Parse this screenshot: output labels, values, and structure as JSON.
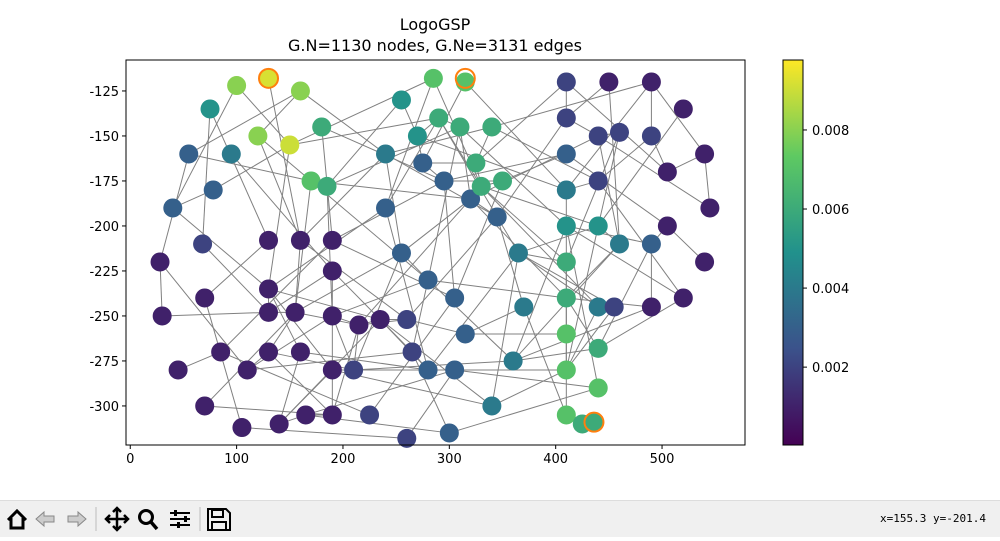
{
  "chart_data": {
    "type": "graph",
    "title": "LogoGSP",
    "subtitle": "G.N=1130 nodes, G.Ne=3131 edges",
    "xlim": [
      -4,
      578
    ],
    "ylim": [
      -321.7,
      -107.8
    ],
    "xticks": [
      0,
      100,
      200,
      300,
      400,
      500
    ],
    "yticks": [
      -125,
      -150,
      -175,
      -200,
      -225,
      -250,
      -275,
      -300
    ],
    "clim": [
      3e-05,
      0.00977
    ],
    "cticks": [
      0.002,
      0.004,
      0.006,
      0.008
    ],
    "colormap": "viridis",
    "edge_color": "#808080",
    "highlight_color": "#ff7f0e",
    "nodes": {
      "x": [
        180,
        160,
        130,
        100,
        75,
        55,
        40,
        28,
        30,
        45,
        70,
        105,
        140,
        165,
        190,
        190,
        190,
        190,
        190,
        160,
        130,
        130,
        130,
        155,
        160,
        130,
        110,
        85,
        70,
        68,
        78,
        95,
        120,
        150,
        170,
        185,
        350,
        340,
        315,
        285,
        255,
        240,
        240,
        255,
        280,
        305,
        315,
        305,
        280,
        265,
        260,
        235,
        215,
        210,
        225,
        260,
        300,
        340,
        360,
        370,
        365,
        345,
        320,
        295,
        275,
        270,
        290,
        310,
        325,
        330,
        410,
        410,
        410,
        410,
        410,
        410,
        410,
        410,
        410,
        410,
        425,
        436,
        440,
        440,
        440,
        450,
        490,
        520,
        540,
        545,
        540,
        520,
        490,
        455,
        440,
        440,
        460,
        490,
        505,
        505,
        490,
        460,
        440
      ],
      "y": [
        -145,
        -125,
        -118,
        -122,
        -135,
        -160,
        -190,
        -220,
        -250,
        -280,
        -300,
        -312,
        -310,
        -305,
        -305,
        -280,
        -250,
        -225,
        -208,
        -208,
        -208,
        -235,
        -248,
        -248,
        -270,
        -270,
        -280,
        -270,
        -240,
        -210,
        -180,
        -160,
        -150,
        -155,
        -175,
        -178,
        -175,
        -145,
        -120,
        -118,
        -130,
        -160,
        -190,
        -215,
        -230,
        -240,
        -260,
        -280,
        -280,
        -270,
        -252,
        -252,
        -255,
        -280,
        -305,
        -318,
        -315,
        -300,
        -275,
        -245,
        -215,
        -195,
        -185,
        -175,
        -165,
        -150,
        -140,
        -145,
        -165,
        -178,
        -120,
        -140,
        -160,
        -180,
        -200,
        -220,
        -240,
        -260,
        -280,
        -305,
        -310,
        -309,
        -290,
        -268,
        -245,
        -120,
        -120,
        -135,
        -160,
        -190,
        -220,
        -240,
        -245,
        -245,
        -150,
        -175,
        -148,
        -150,
        -170,
        -200,
        -210,
        -210,
        -200
      ],
      "value": [
        0.006,
        0.008,
        0.0092,
        0.008,
        0.005,
        0.003,
        0.003,
        0.001,
        0.001,
        0.001,
        0.001,
        0.001,
        0.001,
        0.001,
        0.001,
        0.001,
        0.001,
        0.001,
        0.001,
        0.001,
        0.001,
        0.001,
        0.001,
        0.001,
        0.001,
        0.001,
        0.001,
        0.001,
        0.001,
        0.002,
        0.003,
        0.004,
        0.008,
        0.009,
        0.007,
        0.006,
        0.006,
        0.006,
        0.007,
        0.007,
        0.005,
        0.004,
        0.003,
        0.003,
        0.003,
        0.003,
        0.003,
        0.003,
        0.003,
        0.002,
        0.002,
        0.001,
        0.001,
        0.002,
        0.002,
        0.002,
        0.003,
        0.004,
        0.004,
        0.004,
        0.004,
        0.003,
        0.003,
        0.003,
        0.003,
        0.005,
        0.006,
        0.006,
        0.006,
        0.006,
        0.002,
        0.002,
        0.003,
        0.004,
        0.005,
        0.006,
        0.006,
        0.007,
        0.007,
        0.007,
        0.006,
        0.006,
        0.007,
        0.006,
        0.004,
        0.001,
        0.001,
        0.001,
        0.001,
        0.001,
        0.001,
        0.001,
        0.001,
        0.002,
        0.002,
        0.002,
        0.002,
        0.002,
        0.001,
        0.001,
        0.003,
        0.004,
        0.005
      ]
    },
    "highlight": {
      "x": [
        130,
        315,
        436
      ],
      "y": [
        -118,
        -118,
        -309
      ]
    },
    "status": "x=155.3 y=-201.4"
  }
}
